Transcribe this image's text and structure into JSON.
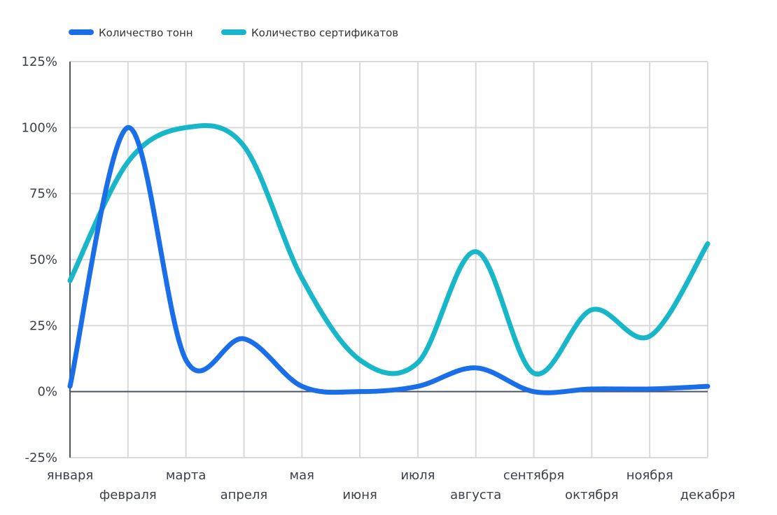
{
  "chart_data": {
    "type": "line",
    "title": "",
    "xlabel": "",
    "ylabel": "",
    "categories": [
      "января",
      "февраля",
      "марта",
      "апреля",
      "мая",
      "июня",
      "июля",
      "августа",
      "сентября",
      "октября",
      "ноября",
      "декабря"
    ],
    "series": [
      {
        "name": "Количество тонн",
        "color": "#1a6fe8",
        "values": [
          2,
          100,
          12,
          20,
          2,
          0,
          2,
          9,
          0,
          1,
          1,
          2
        ]
      },
      {
        "name": "Количество сертификатов",
        "color": "#17b6c9",
        "values": [
          42,
          87,
          100,
          93,
          43,
          12,
          11,
          53,
          7,
          31,
          21,
          56
        ]
      }
    ],
    "ylim": [
      -25,
      125
    ],
    "yticks": [
      125,
      100,
      75,
      50,
      25,
      0,
      -25
    ],
    "ytick_format": "percent",
    "grid": true,
    "legend_position": "top-left"
  }
}
